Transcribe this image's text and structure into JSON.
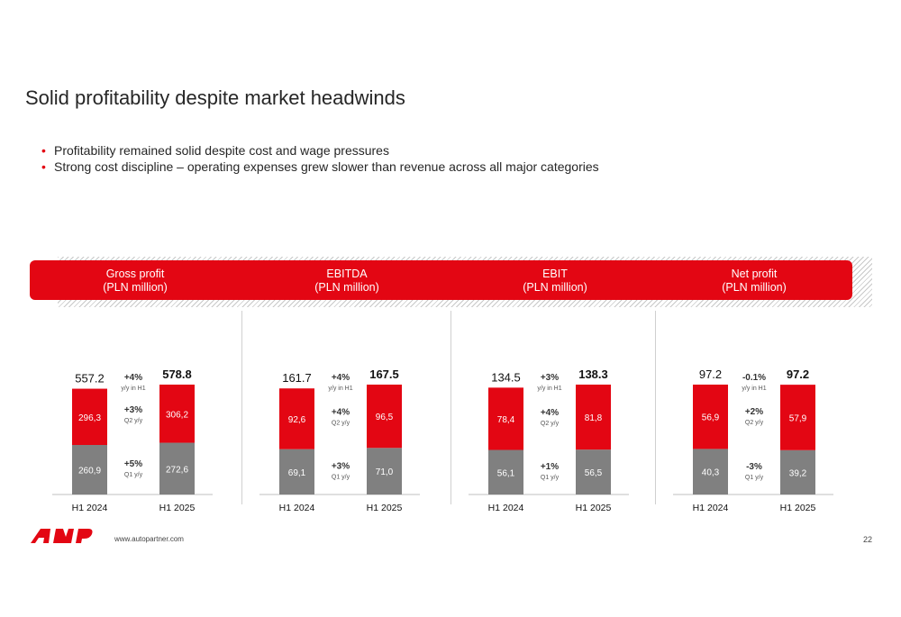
{
  "title": "Solid profitability despite market headwinds",
  "bullets": [
    "Profitability remained solid despite cost and wage pressures",
    "Strong cost discipline – operating expenses grew slower than revenue across all major categories"
  ],
  "colors": {
    "red": "#e30613",
    "grey": "#808080",
    "text": "#262626"
  },
  "footer": {
    "url": "www.autopartner.com",
    "page": "22"
  },
  "logo": {
    "icon": "autopartner-logo-icon"
  },
  "chart_data": [
    {
      "type": "bar",
      "title": "Gross profit\n(PLN million)",
      "title_lines": [
        "Gross profit",
        "(PLN million)"
      ],
      "categories": [
        "H1 2024",
        "H1 2025"
      ],
      "series": [
        {
          "values": [
            260.9,
            272.6
          ],
          "labels": [
            "260,9",
            "272,6"
          ],
          "color": "#808080"
        },
        {
          "values": [
            296.3,
            306.2
          ],
          "labels": [
            "296,3",
            "306,2"
          ],
          "color": "#e30613"
        }
      ],
      "totals": [
        557.2,
        578.8
      ],
      "total_labels": [
        "557.2",
        "578.8"
      ],
      "annotations": [
        {
          "value": "+4%",
          "note": "y/y in H1",
          "position": "top"
        },
        {
          "value": "+3%",
          "note": "Q2 y/y",
          "position": "upper-segment"
        },
        {
          "value": "+5%",
          "note": "Q1 y/y",
          "position": "lower-segment"
        }
      ]
    },
    {
      "type": "bar",
      "title": "EBITDA\n(PLN million)",
      "title_lines": [
        "EBITDA",
        "(PLN million)"
      ],
      "categories": [
        "H1 2024",
        "H1 2025"
      ],
      "series": [
        {
          "values": [
            69.1,
            71.0
          ],
          "labels": [
            "69,1",
            "71,0"
          ],
          "color": "#808080"
        },
        {
          "values": [
            92.6,
            96.5
          ],
          "labels": [
            "92,6",
            "96,5"
          ],
          "color": "#e30613"
        }
      ],
      "totals": [
        161.7,
        167.5
      ],
      "total_labels": [
        "161.7",
        "167.5"
      ],
      "annotations": [
        {
          "value": "+4%",
          "note": "y/y in H1",
          "position": "top"
        },
        {
          "value": "+4%",
          "note": "Q2 y/y",
          "position": "upper-segment"
        },
        {
          "value": "+3%",
          "note": "Q1 y/y",
          "position": "lower-segment"
        }
      ]
    },
    {
      "type": "bar",
      "title": "EBIT\n(PLN million)",
      "title_lines": [
        "EBIT",
        "(PLN million)"
      ],
      "categories": [
        "H1 2024",
        "H1 2025"
      ],
      "series": [
        {
          "values": [
            56.1,
            56.5
          ],
          "labels": [
            "56,1",
            "56,5"
          ],
          "color": "#808080"
        },
        {
          "values": [
            78.4,
            81.8
          ],
          "labels": [
            "78,4",
            "81,8"
          ],
          "color": "#e30613"
        }
      ],
      "totals": [
        134.5,
        138.3
      ],
      "total_labels": [
        "134.5",
        "138.3"
      ],
      "annotations": [
        {
          "value": "+3%",
          "note": "y/y in H1",
          "position": "top"
        },
        {
          "value": "+4%",
          "note": "Q2 y/y",
          "position": "upper-segment"
        },
        {
          "value": "+1%",
          "note": "Q1 y/y",
          "position": "lower-segment"
        }
      ]
    },
    {
      "type": "bar",
      "title": "Net profit\n(PLN million)",
      "title_lines": [
        "Net profit",
        "(PLN million)"
      ],
      "categories": [
        "H1 2024",
        "H1 2025"
      ],
      "series": [
        {
          "values": [
            40.3,
            39.2
          ],
          "labels": [
            "40,3",
            "39,2"
          ],
          "color": "#808080"
        },
        {
          "values": [
            56.9,
            57.9
          ],
          "labels": [
            "56,9",
            "57,9"
          ],
          "color": "#e30613"
        }
      ],
      "totals": [
        97.2,
        97.2
      ],
      "total_labels": [
        "97.2",
        "97.2"
      ],
      "annotations": [
        {
          "value": "-0.1%",
          "note": "y/y in H1",
          "position": "top"
        },
        {
          "value": "+2%",
          "note": "Q2 y/y",
          "position": "upper-segment"
        },
        {
          "value": "-3%",
          "note": "Q1 y/y",
          "position": "lower-segment"
        }
      ]
    }
  ]
}
